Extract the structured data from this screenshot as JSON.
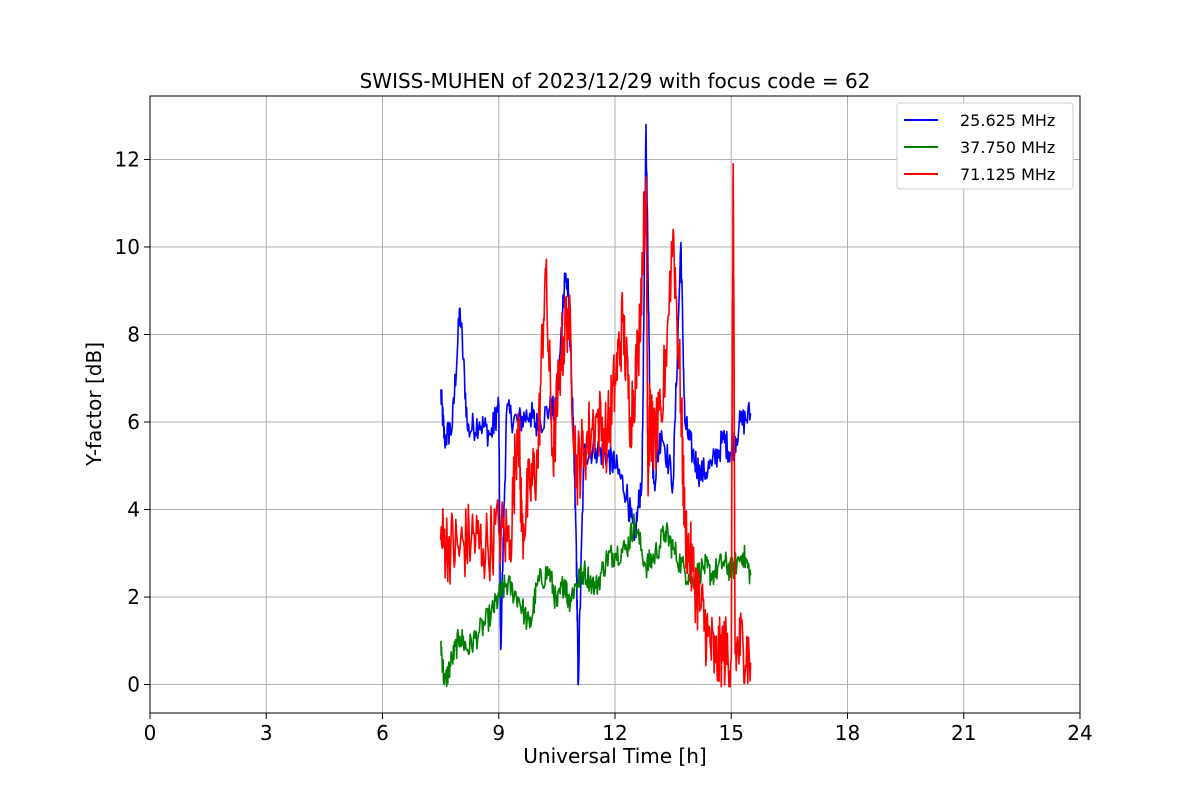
{
  "chart_data": {
    "type": "line",
    "title": "SWISS-MUHEN of 2023/12/29 with focus code = 62",
    "xlabel": "Universal Time [h]",
    "ylabel": "Y-factor [dB]",
    "xlim": [
      0,
      24
    ],
    "ylim": [
      -0.65,
      13.45
    ],
    "xticks": [
      0,
      3,
      6,
      9,
      12,
      15,
      18,
      21,
      24
    ],
    "yticks": [
      0,
      2,
      4,
      6,
      8,
      10,
      12
    ],
    "grid": true,
    "legend_position": "top-right",
    "series": [
      {
        "name": "25.625 MHz",
        "color": "#0000ff",
        "x": [
          7.5,
          7.6,
          7.8,
          8.0,
          8.2,
          8.5,
          8.8,
          9.0,
          9.05,
          9.2,
          9.5,
          9.8,
          10.0,
          10.3,
          10.5,
          10.7,
          10.8,
          10.9,
          11.0,
          11.05,
          11.2,
          11.5,
          11.8,
          12.0,
          12.3,
          12.5,
          12.7,
          12.8,
          12.9,
          13.0,
          13.2,
          13.5,
          13.7,
          13.8,
          14.0,
          14.2,
          14.5,
          14.8,
          15.0,
          15.2,
          15.5
        ],
        "y": [
          6.7,
          5.6,
          5.9,
          8.6,
          5.8,
          6.0,
          5.7,
          6.4,
          0.8,
          6.2,
          6.0,
          6.2,
          5.9,
          6.3,
          6.2,
          9.4,
          8.9,
          6.5,
          3.2,
          0.0,
          5.3,
          5.4,
          5.2,
          5.0,
          4.4,
          3.3,
          4.8,
          12.8,
          6.6,
          4.6,
          5.8,
          4.6,
          10.1,
          6.0,
          5.3,
          4.8,
          5.0,
          5.6,
          5.3,
          5.9,
          6.2
        ]
      },
      {
        "name": "37.750 MHz",
        "color": "#008000",
        "x": [
          7.5,
          7.6,
          7.8,
          8.0,
          8.2,
          8.5,
          8.8,
          9.0,
          9.2,
          9.5,
          9.8,
          10.0,
          10.3,
          10.5,
          10.7,
          10.8,
          11.0,
          11.2,
          11.5,
          11.8,
          12.0,
          12.3,
          12.5,
          12.8,
          13.0,
          13.3,
          13.5,
          13.8,
          14.0,
          14.3,
          14.5,
          14.8,
          15.0,
          15.3,
          15.5
        ],
        "y": [
          1.0,
          0.0,
          0.6,
          1.1,
          0.8,
          1.2,
          1.6,
          2.0,
          2.3,
          2.0,
          1.3,
          2.3,
          2.6,
          1.8,
          2.4,
          1.9,
          2.3,
          2.6,
          2.2,
          2.9,
          3.0,
          3.1,
          3.7,
          2.7,
          2.9,
          3.5,
          3.1,
          2.6,
          2.4,
          2.7,
          2.5,
          2.8,
          2.6,
          3.0,
          2.5
        ]
      },
      {
        "name": "71.125 MHz",
        "color": "#ff0000",
        "x": [
          7.5,
          7.7,
          8.0,
          8.3,
          8.6,
          9.0,
          9.3,
          9.5,
          9.6,
          9.8,
          10.0,
          10.2,
          10.4,
          10.6,
          10.8,
          11.0,
          11.2,
          11.5,
          11.8,
          12.0,
          12.2,
          12.4,
          12.6,
          12.8,
          12.85,
          12.9,
          13.0,
          13.2,
          13.5,
          13.7,
          13.8,
          14.0,
          14.2,
          14.4,
          14.6,
          14.8,
          15.0,
          15.05,
          15.1,
          15.3,
          15.5
        ],
        "y": [
          3.3,
          3.2,
          3.1,
          3.4,
          3.1,
          3.5,
          3.3,
          6.2,
          3.5,
          4.5,
          5.0,
          9.5,
          5.2,
          7.5,
          8.6,
          4.9,
          5.4,
          6.1,
          5.7,
          6.9,
          8.3,
          6.1,
          7.6,
          11.6,
          4.9,
          6.2,
          5.5,
          6.0,
          10.4,
          6.5,
          3.6,
          2.6,
          1.8,
          1.1,
          0.5,
          0.8,
          0.6,
          11.9,
          0.7,
          1.0,
          0.5
        ]
      }
    ]
  }
}
